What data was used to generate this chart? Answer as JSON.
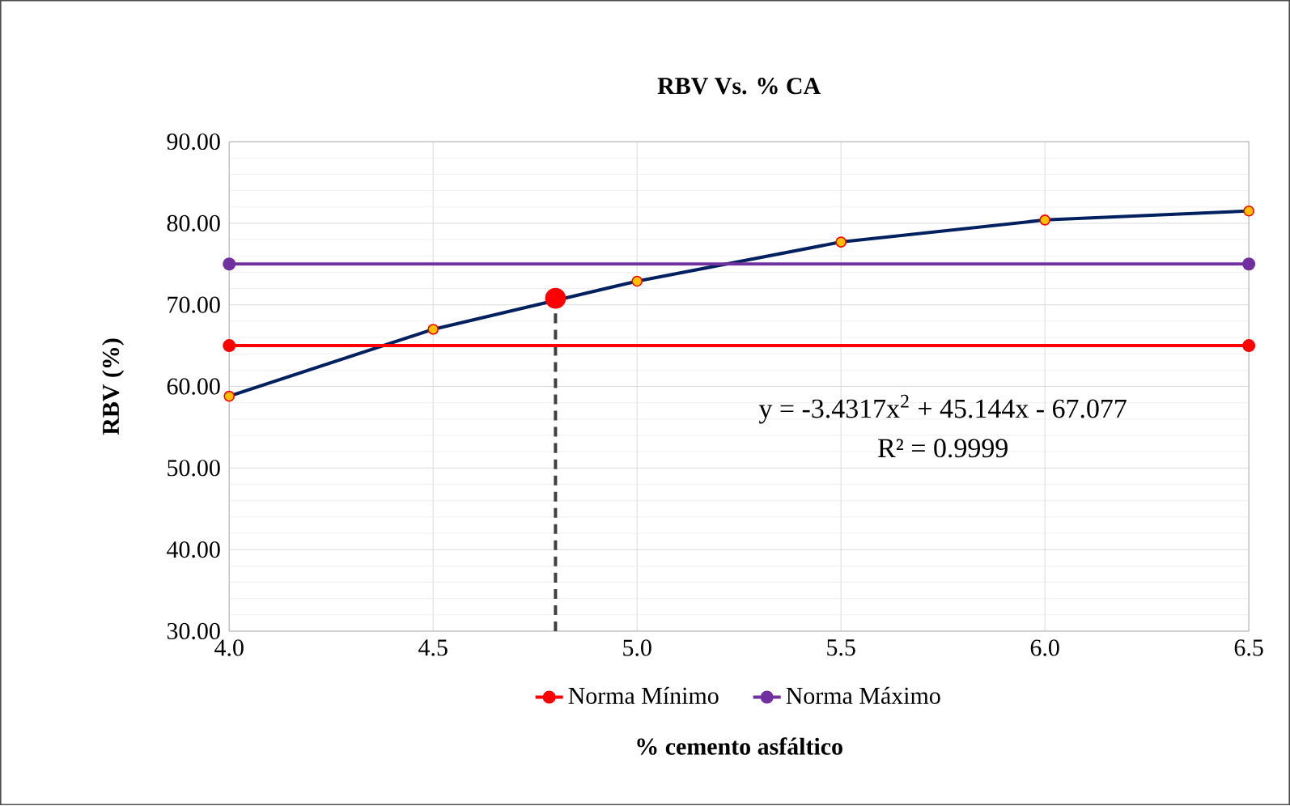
{
  "chart_data": {
    "type": "scatter",
    "title": "RBV Vs. % CA",
    "xlabel": "% cemento asfáltico",
    "ylabel": "RBV (%)",
    "xlim": [
      4.0,
      6.5
    ],
    "ylim": [
      30,
      90
    ],
    "xticks": [
      {
        "value": 4.0,
        "label": "4.0"
      },
      {
        "value": 4.5,
        "label": "4.5"
      },
      {
        "value": 5.0,
        "label": "5.0"
      },
      {
        "value": 5.5,
        "label": "5.5"
      },
      {
        "value": 6.0,
        "label": "6.0"
      },
      {
        "value": 6.5,
        "label": "6.5"
      }
    ],
    "yticks": [
      {
        "value": 30,
        "label": "30.00"
      },
      {
        "value": 40,
        "label": "40.00"
      },
      {
        "value": 50,
        "label": "50.00"
      },
      {
        "value": 60,
        "label": "60.00"
      },
      {
        "value": 70,
        "label": "70.00"
      },
      {
        "value": 80,
        "label": "80.00"
      },
      {
        "value": 90,
        "label": "90.00"
      }
    ],
    "grid": true,
    "legend": "bottom",
    "annotations": [
      "y = -3.4317x$^{2}$ + 45.144x - 67.077",
      "R² = 0.9999"
    ],
    "series": [
      {
        "type": "line",
        "color": "#002060",
        "marker": "none",
        "x": [
          4.0,
          4.5,
          5.0,
          5.5,
          6.0,
          6.5
        ],
        "values": [
          58.8,
          67.0,
          72.9,
          77.7,
          80.4,
          81.5
        ]
      },
      {
        "color": "#ffc000",
        "marker": "circle",
        "x": [
          4.0,
          4.5,
          5.0,
          5.5,
          6.0,
          6.5
        ],
        "values": [
          58.8,
          67.0,
          72.9,
          77.7,
          80.4,
          81.5
        ]
      },
      {
        "color": "#ff0000",
        "marker": "circle",
        "x": [
          4.8
        ],
        "values": [
          70.8
        ]
      },
      {
        "type": "line",
        "color": "#404040",
        "marker": "none",
        "line_style": "dashed",
        "x": [
          4.8,
          4.8
        ],
        "values": [
          30,
          70.8
        ]
      },
      {
        "type": "line",
        "name": "Norma Mínimo",
        "color": "#ff0000",
        "marker": "circle",
        "x": [
          4.0,
          6.5
        ],
        "values": [
          65,
          65
        ]
      },
      {
        "type": "line",
        "name": "Norma Máximo",
        "color": "#7030a0",
        "marker": "circle",
        "x": [
          4.0,
          6.5
        ],
        "values": [
          75,
          75
        ]
      }
    ]
  }
}
